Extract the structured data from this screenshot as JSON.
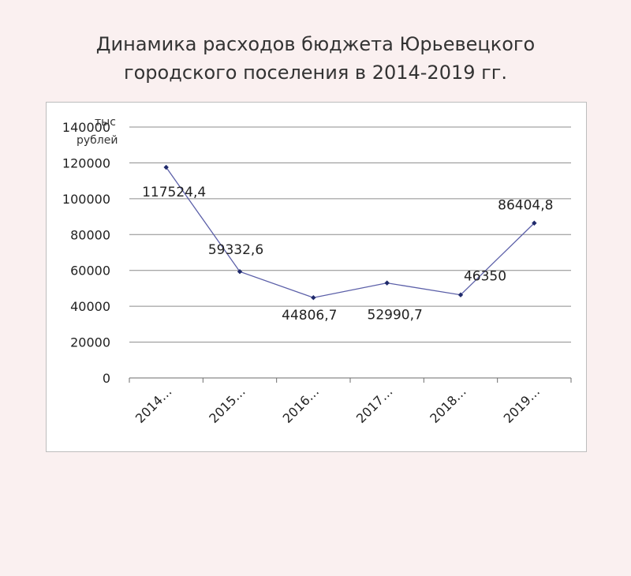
{
  "title": {
    "line1": "Динамика расходов бюджета Юрьевецкого",
    "line2": "городского поселения  в 2014-2019 гг."
  },
  "chart_data": {
    "type": "line",
    "categories": [
      "2014…",
      "2015…",
      "2016…",
      "2017…",
      "2018…",
      "2019…"
    ],
    "values": [
      117524.4,
      59332.6,
      44806.7,
      52990.7,
      46350,
      86404.8
    ],
    "data_labels": [
      "117524,4",
      "59332,6",
      "44806,7",
      "52990,7",
      "46350",
      "86404,8"
    ],
    "ylabel_lines": [
      "тыс",
      "рублей"
    ],
    "y_ticks": [
      0,
      20000,
      40000,
      60000,
      80000,
      100000,
      120000,
      140000
    ],
    "ylim": [
      0,
      140000
    ],
    "grid": true,
    "legend": "none",
    "colors": {
      "line": "#5b5fa8",
      "marker": "#1f2a6b",
      "grid": "#8c8c8c"
    }
  }
}
